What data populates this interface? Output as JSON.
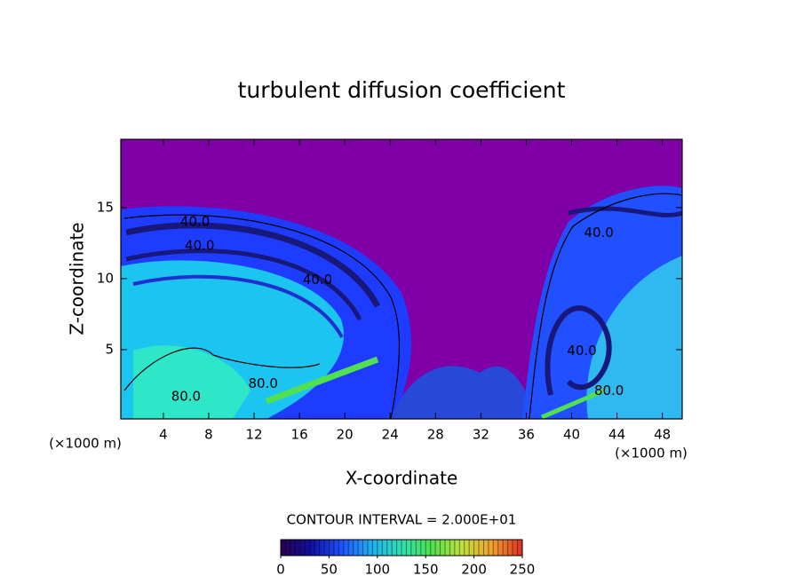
{
  "chart_data": {
    "type": "contour",
    "title": "turbulent diffusion coefficient",
    "x_label": "X-coordinate",
    "y_label": "Z-coordinate",
    "x_unit": "(×1000 m)",
    "y_unit": "(×1000 m)",
    "xlim": [
      0.25,
      49.75
    ],
    "xticks": [
      4,
      8,
      12,
      16,
      20,
      24,
      28,
      32,
      36,
      40,
      44,
      48
    ],
    "ylim": [
      0.125,
      19.8
    ],
    "yticks": [
      5,
      10,
      15
    ],
    "contour_labels": [
      {
        "label": "40.0",
        "x": 6.8,
        "y": 14.0
      },
      {
        "label": "40.0",
        "x": 7.2,
        "y": 12.3
      },
      {
        "label": "40.0",
        "x": 17.6,
        "y": 9.9
      },
      {
        "label": "80.0",
        "x": 12.8,
        "y": 2.6
      },
      {
        "label": "80.0",
        "x": 6.0,
        "y": 1.7
      },
      {
        "label": "40.0",
        "x": 42.4,
        "y": 13.2
      },
      {
        "label": "40.0",
        "x": 40.9,
        "y": 4.9
      },
      {
        "label": "80.0",
        "x": 43.3,
        "y": 2.1
      }
    ],
    "colorbar_label": "CONTOUR INTERVAL = 2.000E+01",
    "clim": [
      0,
      250
    ],
    "colorbar_ticks": [
      0,
      50,
      100,
      150,
      200,
      250
    ],
    "colormap": [
      "#2a0050",
      "#1010a0",
      "#1e50ff",
      "#20b0f0",
      "#30e0b0",
      "#50e050",
      "#c0e040",
      "#f0a030",
      "#e03020"
    ]
  }
}
